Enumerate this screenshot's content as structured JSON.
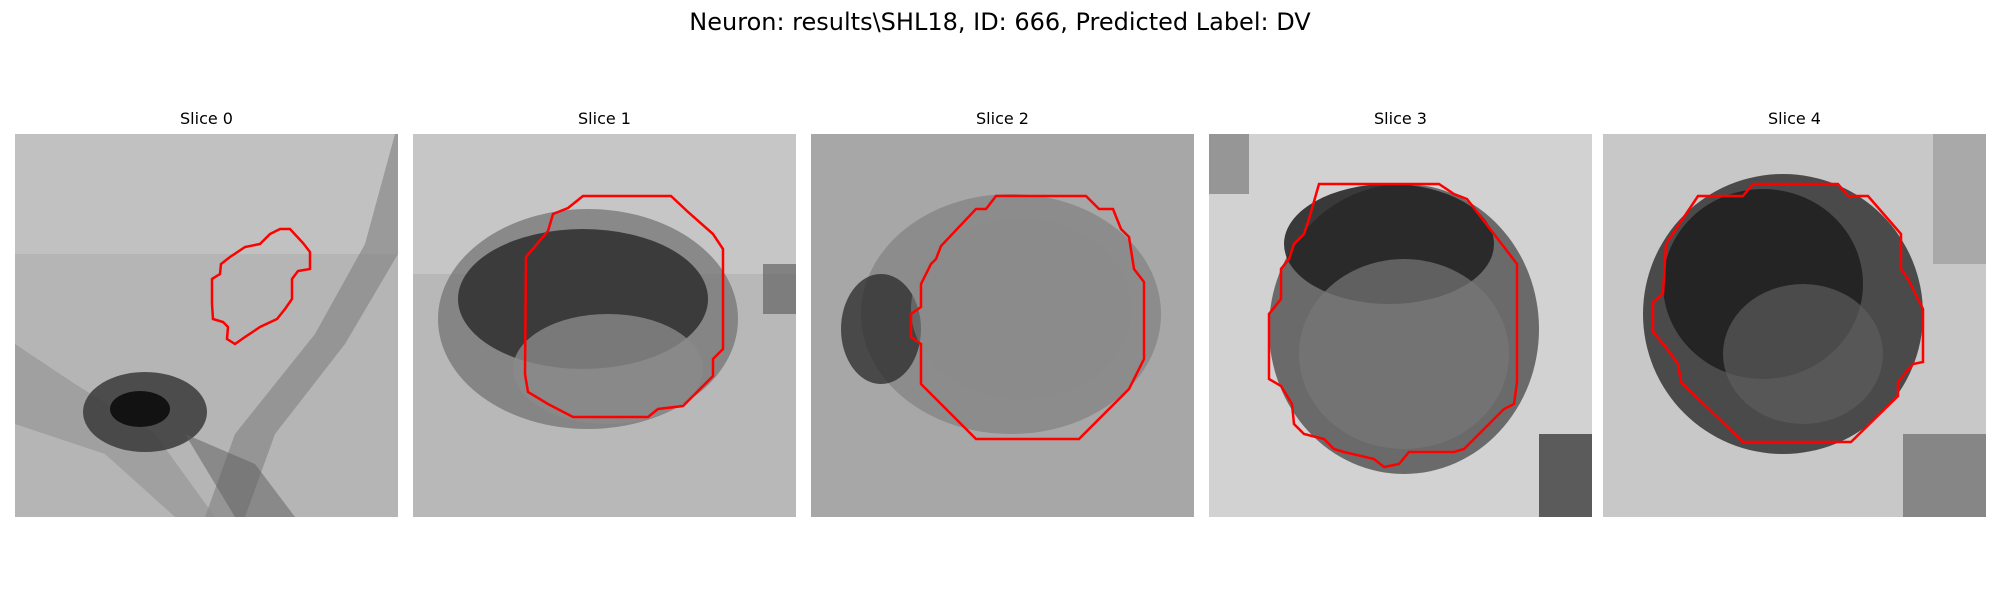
{
  "figure": {
    "suptitle": "Neuron: results\\SHL18, ID: 666, Predicted Label: DV",
    "contour_color": "#ff0000",
    "panels": [
      {
        "title": "Slice 0",
        "description": "grayscale image patch with small irregular red contour"
      },
      {
        "title": "Slice 1",
        "description": "grayscale image patch with octagonal red contour around dark cell"
      },
      {
        "title": "Slice 2",
        "description": "noisy grayscale patch with octagonal red contour"
      },
      {
        "title": "Slice 3",
        "description": "grayscale patch with round red contour around dark cell"
      },
      {
        "title": "Slice 4",
        "description": "grayscale patch with octagonal red contour around dark cell"
      }
    ]
  }
}
